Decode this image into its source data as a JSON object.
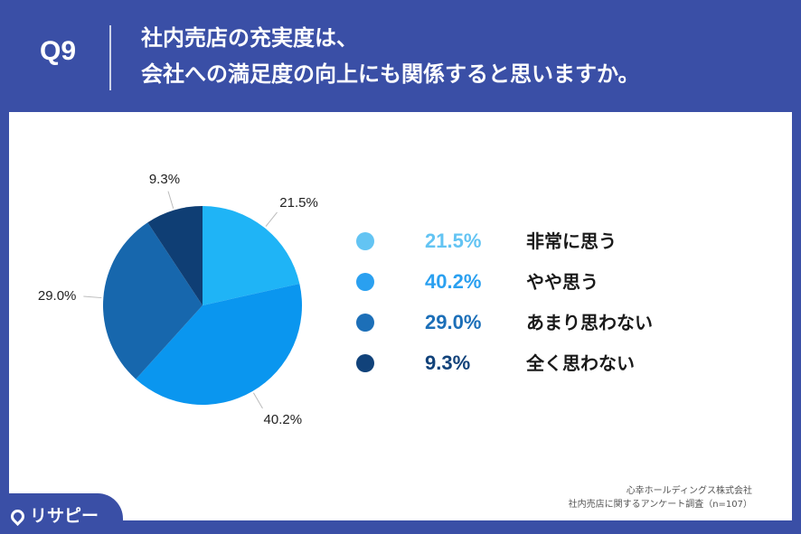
{
  "header": {
    "question_number": "Q9",
    "title_line1": "社内売店の充実度は、",
    "title_line2": "会社への満足度の向上にも関係すると思いますか。"
  },
  "chart_data": {
    "type": "pie",
    "start_angle_deg": 0,
    "direction": "clockwise",
    "slices": [
      {
        "label": "非常に思う",
        "value": 21.5,
        "value_label": "21.5%",
        "color": "#1fb4f6"
      },
      {
        "label": "やや思う",
        "value": 40.2,
        "value_label": "40.2%",
        "color": "#0a96ef"
      },
      {
        "label": "あまり思わない",
        "value": 29.0,
        "value_label": "29.0%",
        "color": "#1767ad"
      },
      {
        "label": "全く思わない",
        "value": 9.3,
        "value_label": "9.3%",
        "color": "#0f3e74"
      }
    ],
    "legend_position": "right"
  },
  "legend_colors": [
    "#63c4f3",
    "#2aa0f0",
    "#1c6fb8",
    "#11427a"
  ],
  "footer": {
    "company": "心幸ホールディングス株式会社",
    "survey": "社内売店に関するアンケート調査（n=107）",
    "logo_text": "リサピー"
  }
}
